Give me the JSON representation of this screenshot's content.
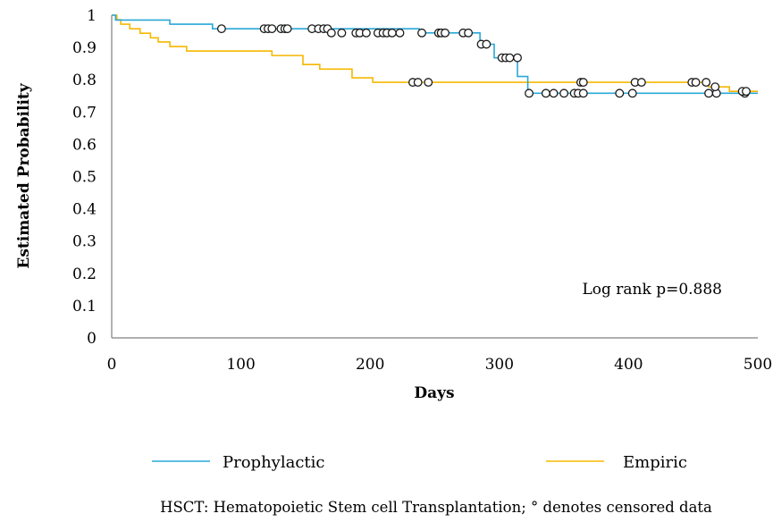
{
  "chart_data": {
    "type": "line",
    "subtype": "kaplan-meier step curve",
    "xlabel": "Days",
    "ylabel": "Estimated Probability",
    "xlim": [
      0,
      500
    ],
    "ylim": [
      0,
      1
    ],
    "xticks": [
      0,
      100,
      200,
      300,
      400,
      500
    ],
    "yticks": [
      0,
      0.1,
      0.2,
      0.3,
      0.4,
      0.5,
      0.6,
      0.7,
      0.8,
      0.9,
      1
    ],
    "grid": false,
    "legend_position": "bottom",
    "annotation": "Log rank p=0.888",
    "footnote": "HSCT: Hematopoietic Stem cell Transplantation; ° denotes censored data",
    "series": [
      {
        "name": "Prophylactic",
        "color": "#29a8d8",
        "steps": [
          [
            0,
            1
          ],
          [
            3,
            0.985
          ],
          [
            45,
            0.972
          ],
          [
            78,
            0.958
          ],
          [
            238,
            0.945
          ],
          [
            285,
            0.91
          ],
          [
            296,
            0.868
          ],
          [
            314,
            0.81
          ],
          [
            322,
            0.758
          ]
        ],
        "censored": [
          [
            85,
            0.958
          ],
          [
            118,
            0.958
          ],
          [
            121,
            0.958
          ],
          [
            124,
            0.958
          ],
          [
            131,
            0.958
          ],
          [
            134,
            0.958
          ],
          [
            136,
            0.958
          ],
          [
            155,
            0.958
          ],
          [
            160,
            0.958
          ],
          [
            164,
            0.958
          ],
          [
            167,
            0.958
          ],
          [
            170,
            0.945
          ],
          [
            178,
            0.945
          ],
          [
            189,
            0.945
          ],
          [
            192,
            0.945
          ],
          [
            197,
            0.945
          ],
          [
            206,
            0.945
          ],
          [
            210,
            0.945
          ],
          [
            213,
            0.945
          ],
          [
            217,
            0.945
          ],
          [
            223,
            0.945
          ],
          [
            240,
            0.945
          ],
          [
            253,
            0.945
          ],
          [
            255,
            0.945
          ],
          [
            258,
            0.945
          ],
          [
            272,
            0.945
          ],
          [
            276,
            0.945
          ],
          [
            286,
            0.91
          ],
          [
            290,
            0.91
          ],
          [
            302,
            0.868
          ],
          [
            305,
            0.868
          ],
          [
            308,
            0.868
          ],
          [
            314,
            0.868
          ],
          [
            323,
            0.758
          ],
          [
            336,
            0.758
          ],
          [
            342,
            0.758
          ],
          [
            350,
            0.758
          ],
          [
            358,
            0.758
          ],
          [
            361,
            0.758
          ],
          [
            365,
            0.758
          ],
          [
            393,
            0.758
          ],
          [
            403,
            0.758
          ],
          [
            462,
            0.758
          ],
          [
            468,
            0.758
          ],
          [
            490,
            0.758
          ]
        ]
      },
      {
        "name": "Empiric",
        "color": "#f5b800",
        "steps": [
          [
            0,
            1
          ],
          [
            4,
            0.986
          ],
          [
            7,
            0.972
          ],
          [
            14,
            0.958
          ],
          [
            22,
            0.944
          ],
          [
            30,
            0.93
          ],
          [
            36,
            0.917
          ],
          [
            45,
            0.903
          ],
          [
            58,
            0.889
          ],
          [
            124,
            0.875
          ],
          [
            148,
            0.847
          ],
          [
            161,
            0.833
          ],
          [
            186,
            0.806
          ],
          [
            202,
            0.792
          ],
          [
            462,
            0.778
          ],
          [
            478,
            0.764
          ]
        ],
        "censored": [
          [
            233,
            0.792
          ],
          [
            237,
            0.792
          ],
          [
            245,
            0.792
          ],
          [
            363,
            0.792
          ],
          [
            365,
            0.792
          ],
          [
            405,
            0.792
          ],
          [
            410,
            0.792
          ],
          [
            449,
            0.792
          ],
          [
            452,
            0.792
          ],
          [
            460,
            0.792
          ],
          [
            467,
            0.778
          ],
          [
            488,
            0.764
          ],
          [
            491,
            0.764
          ]
        ]
      }
    ]
  }
}
